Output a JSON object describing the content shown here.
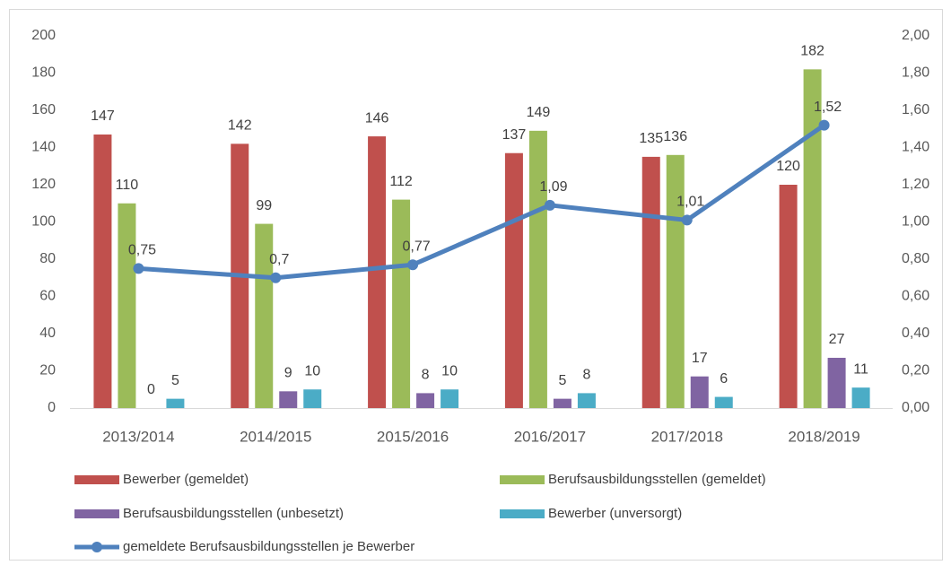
{
  "chart_data": {
    "type": "bar",
    "categories": [
      "2013/2014",
      "2014/2015",
      "2015/2016",
      "2016/2017",
      "2017/2018",
      "2018/2019"
    ],
    "series": [
      {
        "name": "Bewerber (gemeldet)",
        "color": "#c0504d",
        "values": [
          147,
          142,
          146,
          137,
          135,
          120
        ]
      },
      {
        "name": "Berufsausbildungsstellen (gemeldet)",
        "color": "#9bbb59",
        "values": [
          110,
          99,
          112,
          149,
          136,
          182
        ]
      },
      {
        "name": "Berufsausbildungsstellen (unbesetzt)",
        "color": "#8064a2",
        "values": [
          0,
          9,
          8,
          5,
          17,
          27
        ]
      },
      {
        "name": "Bewerber (unversorgt)",
        "color": "#4bacc6",
        "values": [
          5,
          10,
          10,
          8,
          6,
          11
        ]
      },
      {
        "name": "gemeldete Berufsausbildungsstellen je Bewerber",
        "color": "#4f81bd",
        "type": "line",
        "axis": "y2",
        "values": [
          0.75,
          0.7,
          0.77,
          1.09,
          1.01,
          1.52
        ],
        "value_labels": [
          "0,75",
          "0,7",
          "0,77",
          "1,09",
          "1,01",
          "1,52"
        ]
      }
    ],
    "ylim": [
      0,
      200
    ],
    "yticks": [
      0,
      20,
      40,
      60,
      80,
      100,
      120,
      140,
      160,
      180,
      200
    ],
    "y2lim": [
      0,
      2
    ],
    "y2ticks": [
      {
        "value": 0,
        "label": "0,00"
      },
      {
        "value": 0.2,
        "label": "0,20"
      },
      {
        "value": 0.4,
        "label": "0,40"
      },
      {
        "value": 0.6,
        "label": "0,60"
      },
      {
        "value": 0.8,
        "label": "0,80"
      },
      {
        "value": 1,
        "label": "1,00"
      },
      {
        "value": 1.2,
        "label": "1,20"
      },
      {
        "value": 1.4,
        "label": "1,40"
      },
      {
        "value": 1.6,
        "label": "1,60"
      },
      {
        "value": 1.8,
        "label": "1,80"
      },
      {
        "value": 2,
        "label": "2,00"
      }
    ],
    "grid": false,
    "legend": "bottom"
  }
}
